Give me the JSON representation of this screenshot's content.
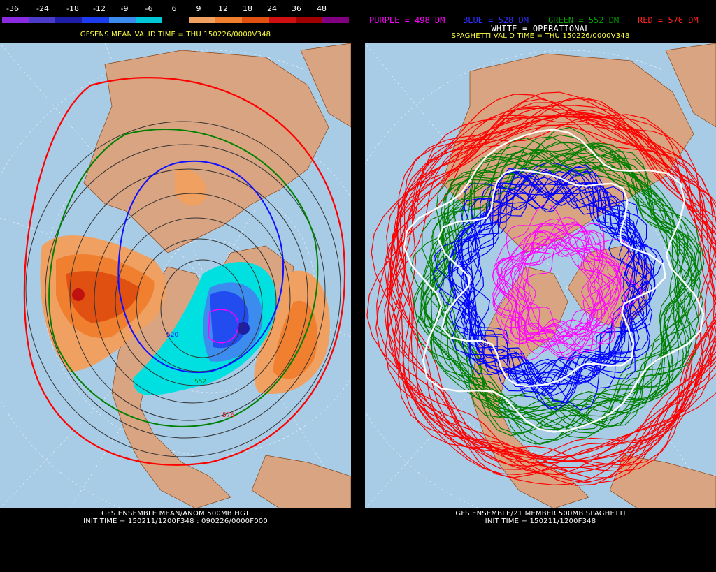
{
  "left_panel": {
    "scale_labels": [
      "-36",
      "-24",
      "-18",
      "-12",
      "-9",
      "-6",
      "6",
      "9",
      "12",
      "18",
      "24",
      "36",
      "48"
    ],
    "scale_colors": [
      "#8a2be2",
      "#4a3cc8",
      "#1e1ea8",
      "#1c3cf0",
      "#3c8cf0",
      "#00c8d8",
      "#000000",
      "#f0a060",
      "#f08030",
      "#e05010",
      "#d01010",
      "#a00000",
      "#800080"
    ],
    "valid_time": "GFSENS MEAN VALID TIME = THU 150226/0000V348",
    "bottom_line1": "GFS ENSEMBLE MEAN/ANOM 500MB HGT",
    "bottom_line2": "INIT TIME = 150211/1200F348 : 090226/0000F000",
    "contour_label_1": "520",
    "contour_label_2": "552",
    "contour_label_3": "576"
  },
  "right_panel": {
    "legend_purple": "PURPLE = 498 DM",
    "legend_blue": "BLUE = 528 DM",
    "legend_green": "GREEN = 552 DM",
    "legend_red": "RED = 576 DM",
    "legend_white": "WHITE = OPERATIONAL",
    "valid_time": "SPAGHETTI VALID TIME = THU 150226/0000V348",
    "bottom_line1": "GFS ENSEMBLE/21 MEMBER 500MB SPAGHETTI",
    "bottom_line2": "INIT TIME = 150211/1200F348"
  },
  "colors": {
    "ocean": "#a8cbe6",
    "land": "#d9a482",
    "purple": "#ff00ff",
    "blue": "#0000ff",
    "green": "#008000",
    "red": "#ff0000",
    "white": "#ffffff"
  }
}
